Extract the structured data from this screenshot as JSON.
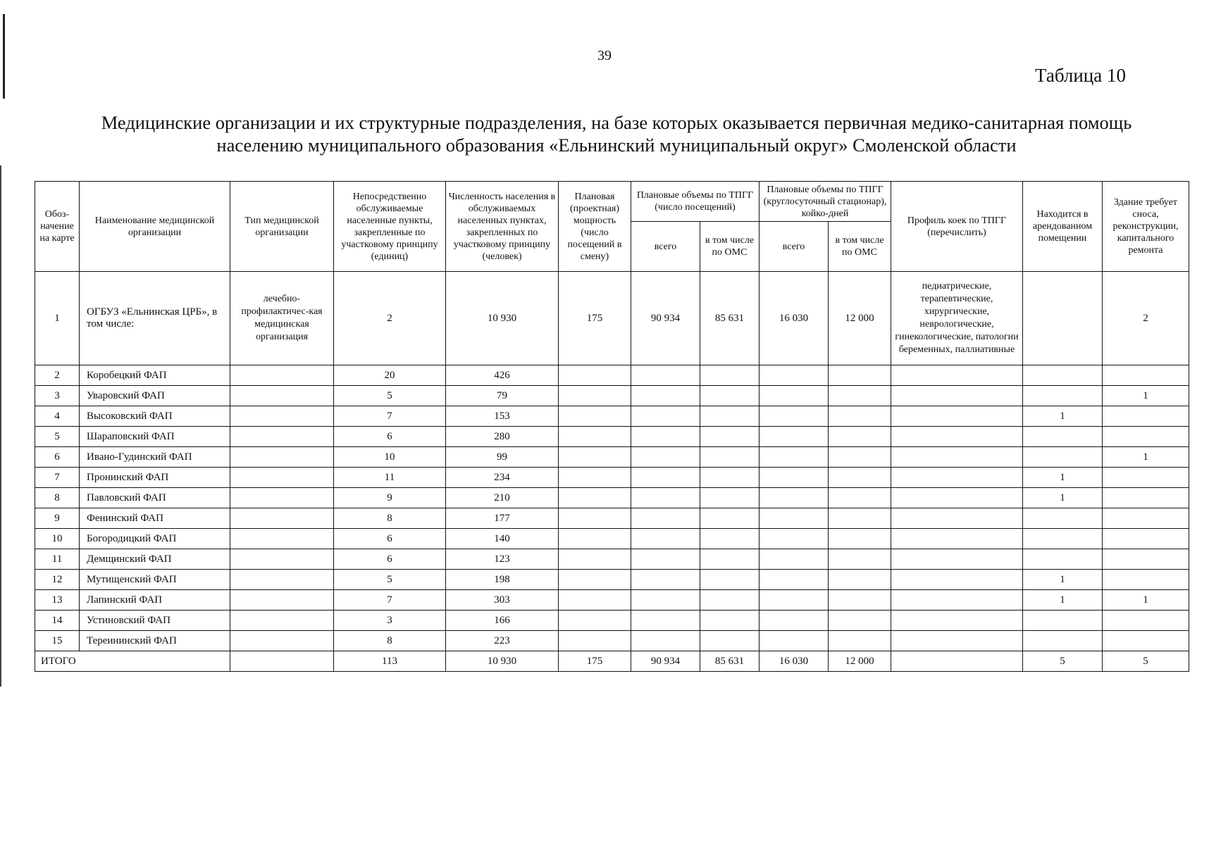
{
  "page_number": "39",
  "table_label": "Таблица 10",
  "title_line1": "Медицинские организации и их структурные подразделения, на базе которых оказывается первичная медико-санитарная помощь",
  "title_line2": "населению муниципального образования «Ельнинский муниципальный округ» Смоленской области",
  "headers": {
    "c1": "Обоз-начение на карте",
    "c2": "Наименование медицинской организации",
    "c3": "Тип медицинской организации",
    "c4": "Непосредственно обслуживаемые населенные пункты, закрепленные по участковому принципу (единиц)",
    "c5": "Численность населения в обслуживаемых населенных пунктах, закрепленных по участковому принципу (человек)",
    "c6": "Плановая (проектная) мощность (число посещений в смену)",
    "g1": "Плановые объемы по ТПГГ (число посещений)",
    "g2": "Плановые объемы по ТПГГ (круглосуточный стационар), койко-дней",
    "g1a": "всего",
    "g1b": "в том числе по ОМС",
    "g2a": "всего",
    "g2b": "в том числе по ОМС",
    "c11": "Профиль коек по ТПГГ (перечислить)",
    "c12": "Находится в арендованном помещении",
    "c13": "Здание требует сноса, реконструкции, капитального ремонта"
  },
  "rows": [
    {
      "n": "1",
      "name": "ОГБУЗ «Ельнинская ЦРБ», в том числе:",
      "type": "лечебно-профилактичес-кая медицинская организация",
      "pts": "2",
      "pop": "10 930",
      "cap": "175",
      "v1": "90 934",
      "v1o": "85 631",
      "v2": "16 030",
      "v2o": "12 000",
      "profile": "педиатрические, терапевтические, хирургические, неврологические, гинекологические, патологии беременных, паллиативные",
      "rent": "",
      "rebuild": "2"
    },
    {
      "n": "2",
      "name": "Коробецкий ФАП",
      "type": "",
      "pts": "20",
      "pop": "426",
      "cap": "",
      "v1": "",
      "v1o": "",
      "v2": "",
      "v2o": "",
      "profile": "",
      "rent": "",
      "rebuild": ""
    },
    {
      "n": "3",
      "name": "Уваровский ФАП",
      "type": "",
      "pts": "5",
      "pop": "79",
      "cap": "",
      "v1": "",
      "v1o": "",
      "v2": "",
      "v2o": "",
      "profile": "",
      "rent": "",
      "rebuild": "1"
    },
    {
      "n": "4",
      "name": "Высоковский ФАП",
      "type": "",
      "pts": "7",
      "pop": "153",
      "cap": "",
      "v1": "",
      "v1o": "",
      "v2": "",
      "v2o": "",
      "profile": "",
      "rent": "1",
      "rebuild": ""
    },
    {
      "n": "5",
      "name": "Шараповский ФАП",
      "type": "",
      "pts": "6",
      "pop": "280",
      "cap": "",
      "v1": "",
      "v1o": "",
      "v2": "",
      "v2o": "",
      "profile": "",
      "rent": "",
      "rebuild": ""
    },
    {
      "n": "6",
      "name": "Ивано-Гудинский ФАП",
      "type": "",
      "pts": "10",
      "pop": "99",
      "cap": "",
      "v1": "",
      "v1o": "",
      "v2": "",
      "v2o": "",
      "profile": "",
      "rent": "",
      "rebuild": "1"
    },
    {
      "n": "7",
      "name": "Пронинский ФАП",
      "type": "",
      "pts": "11",
      "pop": "234",
      "cap": "",
      "v1": "",
      "v1o": "",
      "v2": "",
      "v2o": "",
      "profile": "",
      "rent": "1",
      "rebuild": ""
    },
    {
      "n": "8",
      "name": "Павловский ФАП",
      "type": "",
      "pts": "9",
      "pop": "210",
      "cap": "",
      "v1": "",
      "v1o": "",
      "v2": "",
      "v2o": "",
      "profile": "",
      "rent": "1",
      "rebuild": ""
    },
    {
      "n": "9",
      "name": "Фенинский ФАП",
      "type": "",
      "pts": "8",
      "pop": "177",
      "cap": "",
      "v1": "",
      "v1o": "",
      "v2": "",
      "v2o": "",
      "profile": "",
      "rent": "",
      "rebuild": ""
    },
    {
      "n": "10",
      "name": "Богородицкий ФАП",
      "type": "",
      "pts": "6",
      "pop": "140",
      "cap": "",
      "v1": "",
      "v1o": "",
      "v2": "",
      "v2o": "",
      "profile": "",
      "rent": "",
      "rebuild": ""
    },
    {
      "n": "11",
      "name": "Демщинский ФАП",
      "type": "",
      "pts": "6",
      "pop": "123",
      "cap": "",
      "v1": "",
      "v1o": "",
      "v2": "",
      "v2o": "",
      "profile": "",
      "rent": "",
      "rebuild": ""
    },
    {
      "n": "12",
      "name": "Мутищенский ФАП",
      "type": "",
      "pts": "5",
      "pop": "198",
      "cap": "",
      "v1": "",
      "v1o": "",
      "v2": "",
      "v2o": "",
      "profile": "",
      "rent": "1",
      "rebuild": ""
    },
    {
      "n": "13",
      "name": "Лапинский ФАП",
      "type": "",
      "pts": "7",
      "pop": "303",
      "cap": "",
      "v1": "",
      "v1o": "",
      "v2": "",
      "v2o": "",
      "profile": "",
      "rent": "1",
      "rebuild": "1"
    },
    {
      "n": "14",
      "name": "Устиновский ФАП",
      "type": "",
      "pts": "3",
      "pop": "166",
      "cap": "",
      "v1": "",
      "v1o": "",
      "v2": "",
      "v2o": "",
      "profile": "",
      "rent": "",
      "rebuild": ""
    },
    {
      "n": "15",
      "name": "Тереининский ФАП",
      "type": "",
      "pts": "8",
      "pop": "223",
      "cap": "",
      "v1": "",
      "v1o": "",
      "v2": "",
      "v2o": "",
      "profile": "",
      "rent": "",
      "rebuild": ""
    }
  ],
  "total": {
    "label": "ИТОГО",
    "type": "",
    "pts": "113",
    "pop": "10 930",
    "cap": "175",
    "v1": "90 934",
    "v1o": "85 631",
    "v2": "16 030",
    "v2o": "12 000",
    "profile": "",
    "rent": "5",
    "rebuild": "5"
  }
}
